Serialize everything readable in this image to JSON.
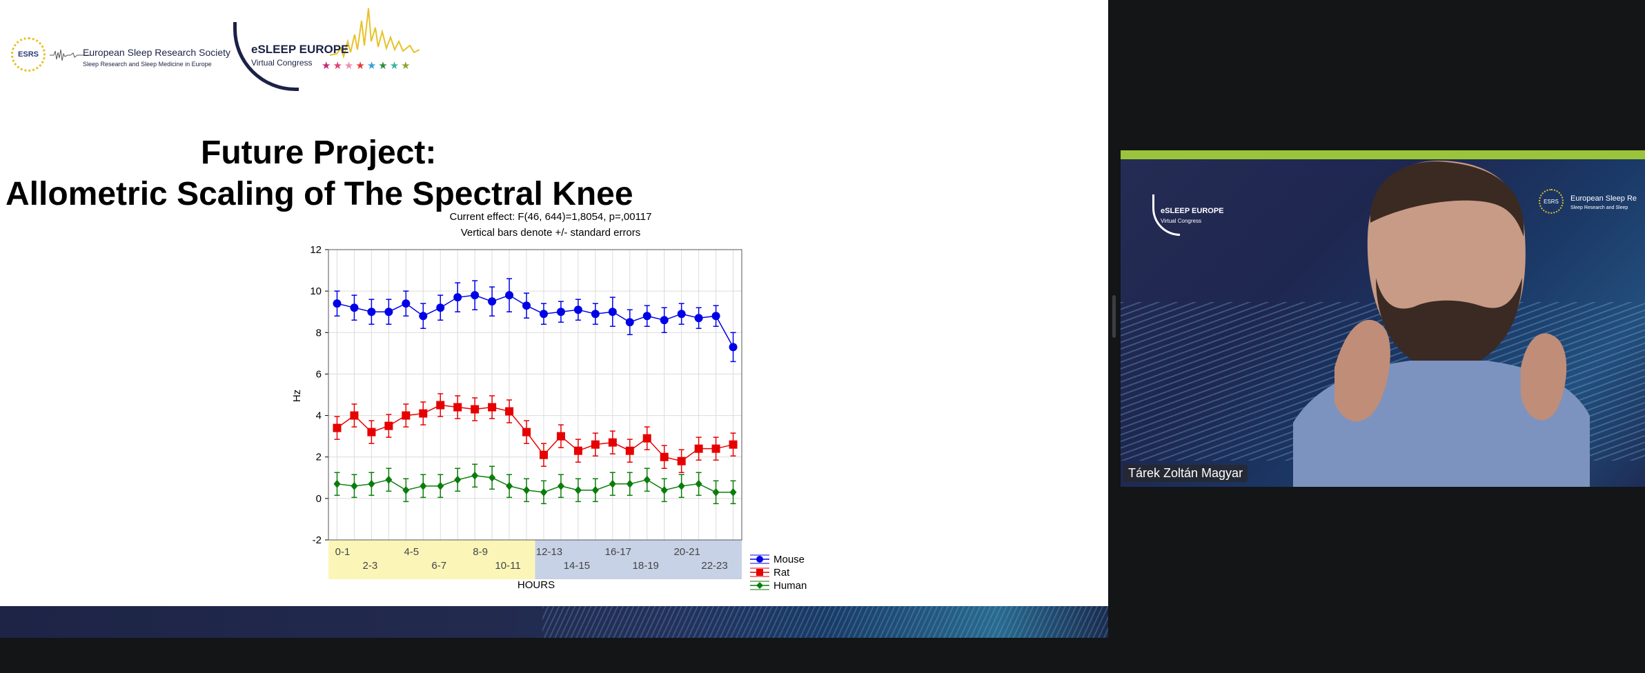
{
  "logos": {
    "esrs_abbr": "ESRS",
    "esrs_name": "European Sleep Research Society",
    "esrs_tagline": "Sleep Research and Sleep Medicine in Europe",
    "esleep_title": "eSLEEP EUROPE",
    "esleep_subtitle": "Virtual Congress"
  },
  "slide": {
    "title_line1": "Future Project:",
    "title_line2": "Allometric Scaling of The Spectral Knee"
  },
  "chart_data": {
    "type": "line",
    "title": "Current effect: F(46, 644)=1,8054, p=,00117",
    "subtitle": "Vertical bars denote +/- standard errors",
    "xlabel": "HOURS",
    "ylabel": "Hz",
    "ylim": [
      -2,
      12
    ],
    "yticks": [
      -2,
      0,
      2,
      4,
      6,
      8,
      10,
      12
    ],
    "categories_top": [
      "0-1",
      "4-5",
      "8-9",
      "12-13",
      "16-17",
      "20-21"
    ],
    "categories_bottom": [
      "2-3",
      "6-7",
      "10-11",
      "14-15",
      "18-19",
      "22-23"
    ],
    "n_points": 24,
    "grid": true,
    "legend_position": "bottom-right",
    "series": [
      {
        "name": "Mouse",
        "color": "#0000e6",
        "marker": "circle",
        "values": [
          9.4,
          9.2,
          9.0,
          9.0,
          9.4,
          8.8,
          9.2,
          9.7,
          9.8,
          9.5,
          9.8,
          9.3,
          8.9,
          9.0,
          9.1,
          8.9,
          9.0,
          8.5,
          8.8,
          8.6,
          8.9,
          8.7,
          8.8,
          7.3
        ],
        "errors": [
          0.6,
          0.6,
          0.6,
          0.6,
          0.6,
          0.6,
          0.6,
          0.7,
          0.7,
          0.7,
          0.8,
          0.6,
          0.5,
          0.5,
          0.5,
          0.5,
          0.7,
          0.6,
          0.5,
          0.6,
          0.5,
          0.5,
          0.5,
          0.7
        ]
      },
      {
        "name": "Rat",
        "color": "#e60000",
        "marker": "square",
        "values": [
          3.4,
          4.0,
          3.2,
          3.5,
          4.0,
          4.1,
          4.5,
          4.4,
          4.3,
          4.4,
          4.2,
          3.2,
          2.1,
          3.0,
          2.3,
          2.6,
          2.7,
          2.3,
          2.9,
          2.0,
          1.8,
          2.4,
          2.4,
          2.6
        ]
      },
      {
        "name": "Human",
        "color": "#0a7d0a",
        "marker": "diamond",
        "values": [
          0.7,
          0.6,
          0.7,
          0.9,
          0.4,
          0.6,
          0.6,
          0.9,
          1.1,
          1.0,
          0.6,
          0.4,
          0.3,
          0.6,
          0.4,
          0.4,
          0.7,
          0.7,
          0.9,
          0.4,
          0.6,
          0.7,
          0.3,
          0.3
        ]
      }
    ],
    "band_colors": {
      "day": "#fbf6b8",
      "night": "#c7d2e6"
    }
  },
  "video": {
    "speaker_name": "Tárek Zoltán Magyar",
    "logo_left_title": "eSLEEP EUROPE",
    "logo_left_subtitle": "Virtual Congress",
    "logo_right_abbr": "ESRS",
    "logo_right_name": "European Sleep Re",
    "logo_right_tagline": "Sleep Research and Sleep"
  }
}
